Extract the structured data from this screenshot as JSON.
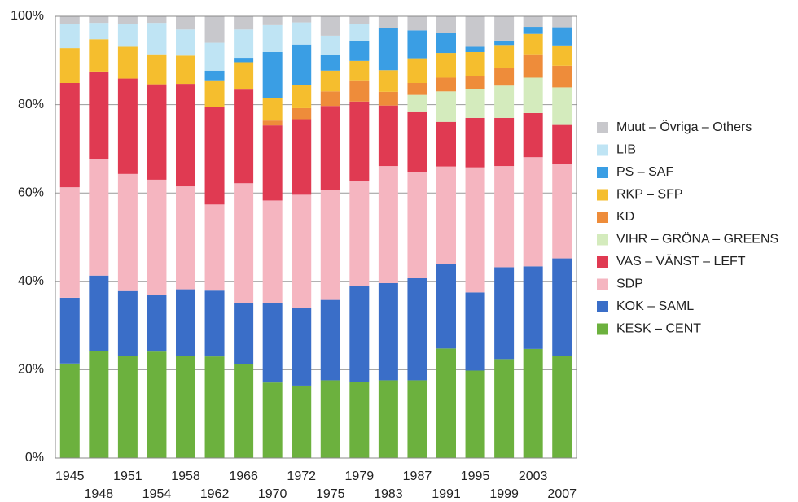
{
  "chart_data": {
    "type": "stacked_bar",
    "categories": [
      "1945",
      "1948",
      "1951",
      "1954",
      "1958",
      "1962",
      "1966",
      "1970",
      "1972",
      "1975",
      "1979",
      "1983",
      "1987",
      "1991",
      "1995",
      "1999",
      "2003",
      "2007"
    ],
    "series": [
      {
        "name": "KESK – CENT",
        "color": "#6cb13e",
        "values": [
          21.4,
          24.2,
          23.2,
          24.1,
          23.1,
          23.0,
          21.2,
          17.1,
          16.4,
          17.6,
          17.3,
          17.6,
          17.6,
          24.8,
          19.8,
          22.4,
          24.7,
          23.1
        ]
      },
      {
        "name": "KOK – SAML",
        "color": "#3a6ec8",
        "values": [
          14.9,
          17.1,
          14.6,
          12.8,
          15.1,
          14.9,
          13.8,
          17.9,
          17.5,
          18.2,
          21.7,
          22.0,
          23.1,
          19.1,
          17.7,
          20.8,
          18.7,
          22.1
        ]
      },
      {
        "name": "SDP",
        "color": "#f5b5c0",
        "values": [
          25.0,
          26.3,
          26.5,
          26.1,
          23.3,
          19.5,
          27.2,
          23.3,
          25.7,
          24.9,
          23.8,
          26.5,
          24.1,
          22.1,
          28.3,
          22.9,
          24.7,
          21.4
        ]
      },
      {
        "name": "VAS – VÄNST – LEFT",
        "color": "#e03a52",
        "values": [
          23.6,
          19.9,
          21.6,
          21.6,
          23.2,
          22.0,
          21.2,
          17.0,
          17.1,
          19.0,
          17.9,
          13.7,
          13.5,
          10.1,
          11.2,
          10.9,
          10.0,
          8.8
        ]
      },
      {
        "name": "VIHR – GRÖNA – GREENS",
        "color": "#d4ebbd",
        "values": [
          0,
          0,
          0,
          0,
          0,
          0,
          0,
          0,
          0,
          0,
          0,
          0,
          3.9,
          6.9,
          6.5,
          7.3,
          8.0,
          8.5
        ]
      },
      {
        "name": "KD",
        "color": "#ee8c3a",
        "values": [
          0,
          0,
          0,
          0,
          0,
          0,
          0,
          1.1,
          2.5,
          3.3,
          4.8,
          3.1,
          2.7,
          3.1,
          3.0,
          4.1,
          5.3,
          4.9
        ]
      },
      {
        "name": "RKP – SFP",
        "color": "#f5be2e",
        "values": [
          7.9,
          7.3,
          7.2,
          6.8,
          6.4,
          6.1,
          6.2,
          5.0,
          5.3,
          4.7,
          4.4,
          4.9,
          5.6,
          5.6,
          5.4,
          5.1,
          4.6,
          4.6
        ]
      },
      {
        "name": "PS – SAF",
        "color": "#3a9ee4",
        "values": [
          0,
          0,
          0,
          0,
          0,
          2.2,
          1.0,
          10.5,
          9.1,
          3.5,
          4.6,
          9.5,
          6.3,
          4.6,
          1.2,
          1.0,
          1.6,
          4.1
        ]
      },
      {
        "name": "LIB",
        "color": "#bfe4f4",
        "values": [
          5.4,
          3.7,
          5.2,
          7.1,
          5.9,
          6.3,
          6.4,
          6.1,
          5.0,
          4.4,
          3.8,
          0,
          0,
          0,
          0,
          0,
          0,
          0
        ]
      },
      {
        "name": "Muut – Övriga – Others",
        "color": "#c8c8cc",
        "values": [
          1.8,
          1.5,
          1.7,
          1.5,
          3.0,
          6.0,
          3.0,
          2.0,
          1.4,
          4.4,
          1.7,
          2.7,
          3.2,
          3.7,
          6.9,
          5.5,
          2.4,
          2.5
        ]
      }
    ],
    "ylim": [
      0,
      100
    ],
    "yticks": [
      {
        "value": 0,
        "label": "0%"
      },
      {
        "value": 20,
        "label": "20%"
      },
      {
        "value": 40,
        "label": "40%"
      },
      {
        "value": 60,
        "label": "60%"
      },
      {
        "value": 80,
        "label": "80%"
      },
      {
        "value": 100,
        "label": "100%"
      }
    ],
    "grid": true,
    "legend": "right"
  }
}
